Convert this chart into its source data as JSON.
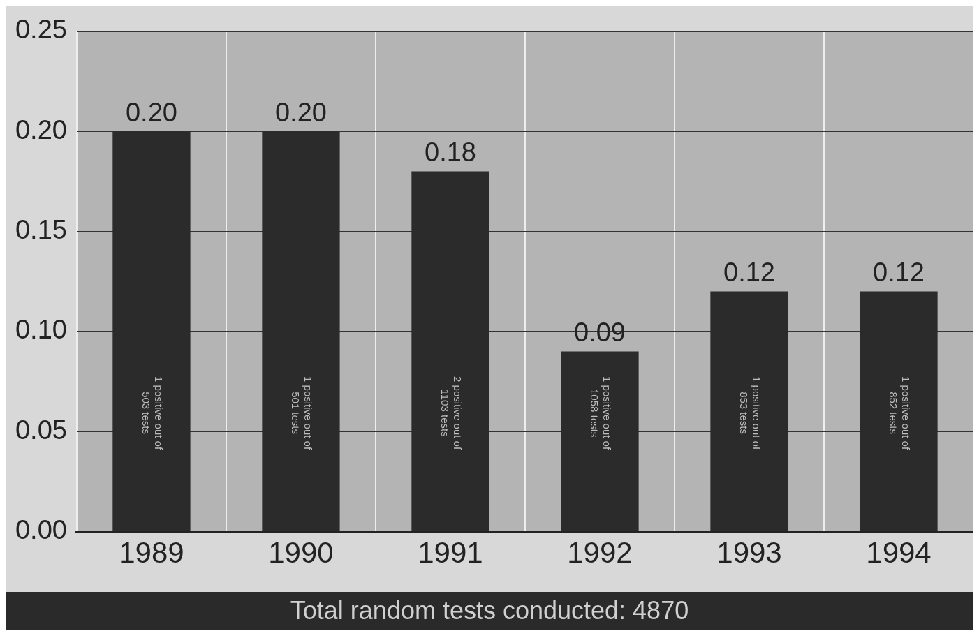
{
  "chart_data": {
    "type": "bar",
    "categories": [
      "1989",
      "1990",
      "1991",
      "1992",
      "1993",
      "1994"
    ],
    "values": [
      0.2,
      0.2,
      0.18,
      0.09,
      0.12,
      0.12
    ],
    "value_labels": [
      "0.20",
      "0.20",
      "0.18",
      "0.09",
      "0.12",
      "0.12"
    ],
    "color": "#2b2b2b",
    "ylim": [
      0,
      0.25
    ],
    "yticks": [
      {
        "value": 0,
        "label": "0.00"
      },
      {
        "value": 0.05,
        "label": "0.05"
      },
      {
        "value": 0.1,
        "label": "0.10"
      },
      {
        "value": 0.15,
        "label": "0.15"
      },
      {
        "value": 0.2,
        "label": "0.20"
      },
      {
        "value": 0.25,
        "label": "0.25"
      }
    ],
    "grid": true,
    "annotations": [
      "1 positive out of 503 tests",
      "1 positive out of 501 tests",
      "2 positive out of 1103 tests",
      "1 positive out of 1058 tests",
      "1 positive out of 853 tests",
      "1 positive out of 852 tests",
      "Total random tests conducted: 4870"
    ]
  }
}
